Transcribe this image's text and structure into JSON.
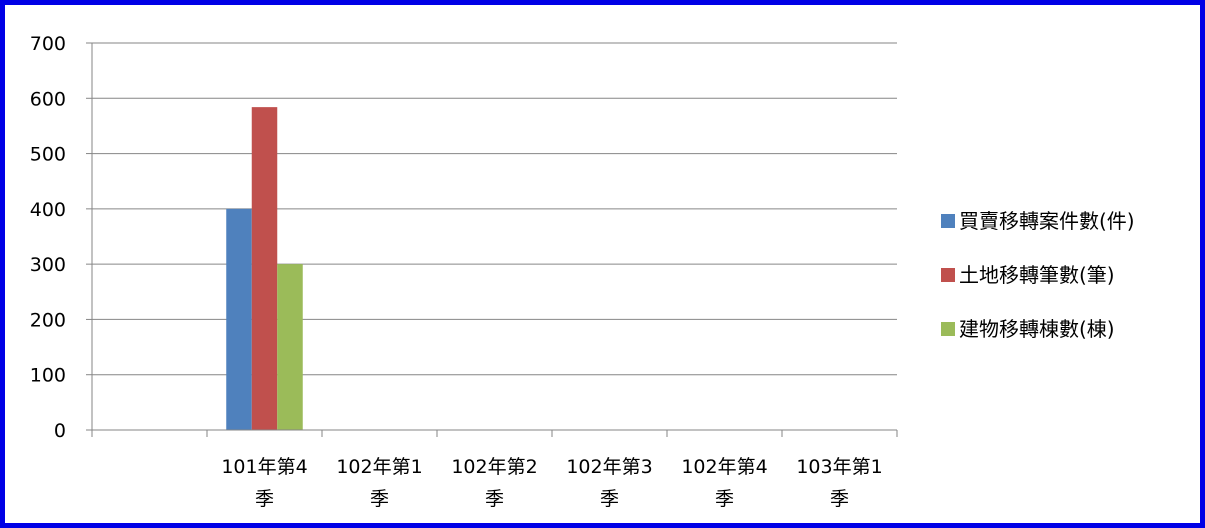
{
  "chart_data": {
    "type": "bar",
    "categories": [
      [
        "",
        ""
      ],
      [
        "101年第4",
        "季"
      ],
      [
        "102年第1",
        "季"
      ],
      [
        "102年第2",
        "季"
      ],
      [
        "102年第3",
        "季"
      ],
      [
        "102年第4",
        "季"
      ],
      [
        "103年第1",
        "季"
      ]
    ],
    "series": [
      {
        "name": "買賣移轉案件數(件)",
        "color": "#4f81bd",
        "values": [
          null,
          400,
          null,
          null,
          null,
          null,
          null
        ]
      },
      {
        "name": "土地移轉筆數(筆)",
        "color": "#c0504d",
        "values": [
          null,
          584,
          null,
          null,
          null,
          null,
          null
        ]
      },
      {
        "name": "建物移轉棟數(棟)",
        "color": "#9bbb59",
        "values": [
          null,
          300,
          null,
          null,
          null,
          null,
          null
        ]
      }
    ],
    "ylim": [
      0,
      700
    ],
    "yticks": [
      0,
      100,
      200,
      300,
      400,
      500,
      600,
      700
    ],
    "grid": true,
    "legend": "right",
    "title": "",
    "xlabel": "",
    "ylabel": ""
  }
}
